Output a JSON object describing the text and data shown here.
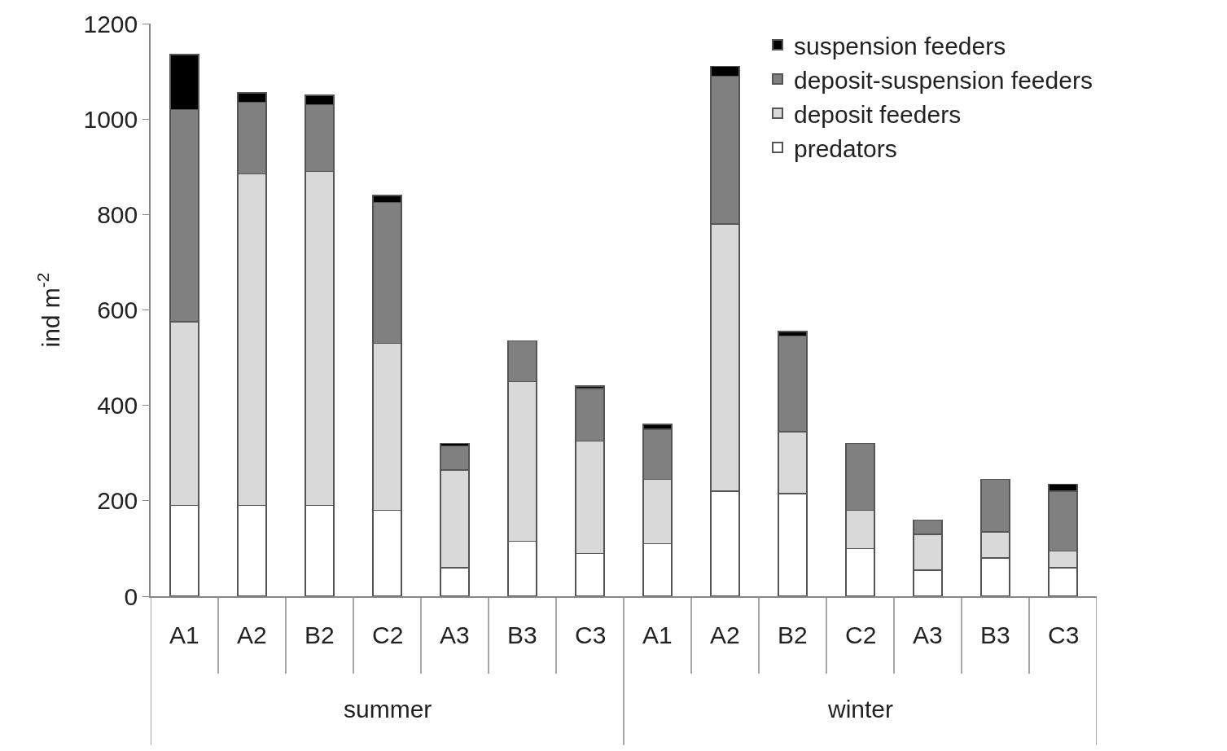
{
  "chart_data": {
    "type": "bar",
    "stacked": true,
    "ylabel": "ind m$^{-2}$",
    "categories": [
      "A1",
      "A2",
      "B2",
      "C2",
      "A3",
      "B3",
      "C3",
      "A1",
      "A2",
      "B2",
      "C2",
      "A3",
      "B3",
      "C3"
    ],
    "series": [
      {
        "name": "predators",
        "color": "#ffffff",
        "values": [
          190,
          190,
          190,
          180,
          60,
          115,
          90,
          110,
          220,
          215,
          100,
          55,
          80,
          60
        ]
      },
      {
        "name": "deposit feeders",
        "color": "#d9d9d9",
        "values": [
          385,
          695,
          700,
          350,
          205,
          335,
          235,
          135,
          560,
          130,
          80,
          75,
          55,
          35
        ]
      },
      {
        "name": "deposit-suspension feeders",
        "color": "#808080",
        "values": [
          445,
          150,
          140,
          295,
          50,
          85,
          110,
          105,
          310,
          200,
          140,
          30,
          110,
          125
        ]
      },
      {
        "name": "suspension feeders",
        "color": "#000000",
        "values": [
          115,
          20,
          20,
          15,
          5,
          null,
          5,
          10,
          20,
          10,
          null,
          null,
          null,
          15
        ]
      }
    ],
    "annotations": [
      "summer",
      "winter"
    ],
    "ylim": [
      0,
      1200
    ],
    "yticks": [
      0,
      200,
      400,
      600,
      800,
      1000,
      1200
    ],
    "grid": false,
    "legend": "top right"
  }
}
